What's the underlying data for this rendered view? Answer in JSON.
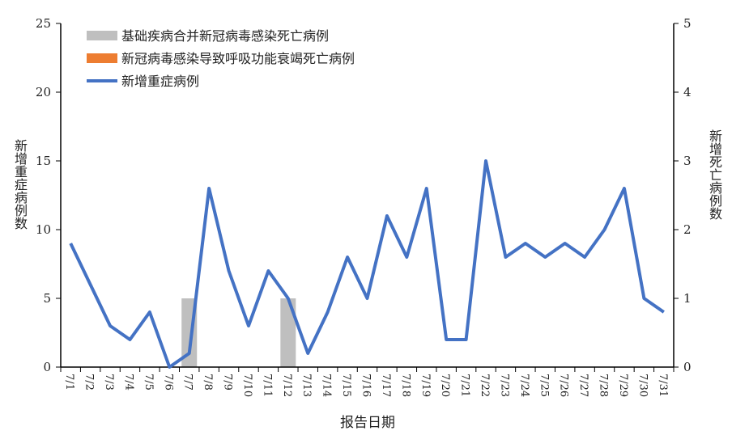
{
  "chart_data": {
    "type": "bar+line",
    "categories": [
      "7/1",
      "7/2",
      "7/3",
      "7/4",
      "7/5",
      "7/6",
      "7/7",
      "7/8",
      "7/9",
      "7/10",
      "7/11",
      "7/12",
      "7/13",
      "7/14",
      "7/15",
      "7/16",
      "7/17",
      "7/18",
      "7/19",
      "7/20",
      "7/21",
      "7/22",
      "7/23",
      "7/24",
      "7/25",
      "7/26",
      "7/27",
      "7/28",
      "7/29",
      "7/30",
      "7/31"
    ],
    "series": [
      {
        "name": "基础疾病合并新冠病毒感染死亡病例",
        "type": "bar",
        "axis": "right",
        "color": "#bfbfbf",
        "values": [
          0,
          0,
          0,
          0,
          0,
          0,
          1,
          0,
          0,
          0,
          0,
          1,
          0,
          0,
          0,
          0,
          0,
          0,
          0,
          0,
          0,
          0,
          0,
          0,
          0,
          0,
          0,
          0,
          0,
          0,
          0
        ]
      },
      {
        "name": "新冠病毒感染导致呼吸功能衰竭死亡病例",
        "type": "bar",
        "axis": "right",
        "color": "#ed7d31",
        "values": [
          0,
          0,
          0,
          0,
          0,
          0,
          0,
          0,
          0,
          0,
          0,
          0,
          0,
          0,
          0,
          0,
          0,
          0,
          0,
          0,
          0,
          0,
          0,
          0,
          0,
          0,
          0,
          0,
          0,
          0,
          0
        ]
      },
      {
        "name": "新增重症病例",
        "type": "line",
        "axis": "left",
        "color": "#4472c4",
        "values": [
          9,
          6,
          3,
          2,
          4,
          0,
          1,
          13,
          7,
          3,
          7,
          5,
          1,
          4,
          8,
          5,
          11,
          8,
          13,
          2,
          2,
          15,
          8,
          9,
          8,
          9,
          8,
          10,
          13,
          5,
          4
        ]
      }
    ],
    "xlabel": "报告日期",
    "ylabel": "新增重症病例数",
    "y2label": "新增死亡病例数",
    "ylim": [
      0,
      25
    ],
    "yticks": [
      0,
      5,
      10,
      15,
      20,
      25
    ],
    "y2lim": [
      0,
      5
    ],
    "y2ticks": [
      0,
      1,
      2,
      3,
      4,
      5
    ],
    "grid": false,
    "legend": "top-left"
  }
}
